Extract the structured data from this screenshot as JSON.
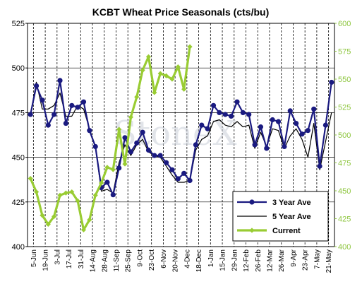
{
  "chart_data": {
    "type": "line",
    "title": "KCBT Wheat Price Seasonals (cts/bu)",
    "watermark": "StoneX",
    "colors": {
      "three_year": "#1a1a80",
      "five_year": "#000000",
      "current": "#99cc33",
      "right_axis": "#8ec63f",
      "plot_border": "#000000"
    },
    "left_axis": {
      "ylim": [
        400,
        525
      ],
      "ticks": [
        "400",
        "425",
        "450",
        "475",
        "500",
        "525"
      ],
      "tick_values": [
        400,
        425,
        450,
        475,
        500,
        525
      ]
    },
    "right_axis": {
      "ylim": [
        400,
        600
      ],
      "ticks": [
        "400",
        "425",
        "450",
        "475",
        "500",
        "525",
        "550",
        "575",
        "600"
      ],
      "tick_values": [
        400,
        425,
        450,
        475,
        500,
        525,
        550,
        575,
        600
      ]
    },
    "x_labels": [
      "5-Jun",
      "19-Jun",
      "3-Jul",
      "17-Jul",
      "31-Jul",
      "14-Aug",
      "28-Aug",
      "11-Sep",
      "25-Sep",
      "9-Oct",
      "23-Oct",
      "6-Nov",
      "20-Nov",
      "4-Dec",
      "18-Dec",
      "1-Jan",
      "15-Jan",
      "29-Jan",
      "12-Feb",
      "26-Feb",
      "12-Mar",
      "26-Mar",
      "9-Apr",
      "23-Apr",
      "7-May",
      "21-May"
    ],
    "grid": {
      "vertical_dashed": true,
      "horizontal_solid": true
    },
    "legend": {
      "position": "bottom-right"
    },
    "series": [
      {
        "name": "3 Year Ave",
        "axis": "left",
        "marker": "circle",
        "values": [
          474,
          490,
          482,
          468,
          474,
          493,
          469,
          479,
          478,
          481,
          465,
          456,
          433,
          436,
          429,
          444,
          461,
          453,
          458,
          464,
          454,
          451,
          451,
          447,
          443,
          438,
          441,
          437,
          457,
          468,
          466,
          479,
          475,
          474,
          473,
          481,
          475,
          474,
          457,
          467,
          455,
          471,
          470,
          456,
          476,
          469,
          463,
          465,
          477,
          445,
          468,
          492
        ]
      },
      {
        "name": "5 Year Ave",
        "axis": "left",
        "values": [
          474,
          492,
          477,
          477,
          479,
          486,
          473,
          473,
          479,
          477,
          466,
          456,
          431,
          432,
          430,
          447,
          457,
          451,
          457,
          460,
          453,
          451,
          450,
          445,
          440,
          436,
          436,
          437,
          454,
          460,
          462,
          470,
          471,
          468,
          467,
          470,
          467,
          468,
          455,
          464,
          456,
          466,
          465,
          455,
          462,
          466,
          460,
          450,
          469,
          443,
          459,
          475
        ]
      },
      {
        "name": "Current",
        "axis": "right",
        "marker": "diamond",
        "values": [
          461,
          449,
          428,
          420,
          427,
          446,
          448,
          449,
          441,
          415,
          424,
          446,
          457,
          471,
          469,
          505,
          474,
          516,
          534,
          558,
          570,
          538,
          555,
          553,
          550,
          561,
          541,
          579
        ]
      }
    ]
  }
}
